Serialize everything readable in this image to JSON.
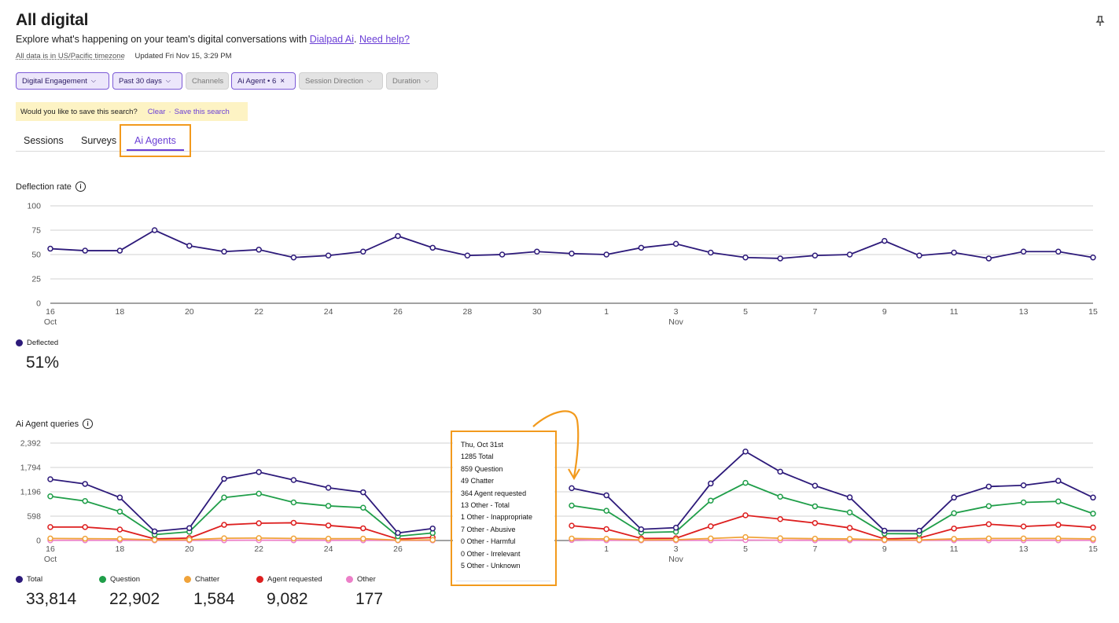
{
  "header": {
    "title": "All digital",
    "subtitle_prefix": "Explore what's happening on your team's digital conversations with ",
    "subtitle_link1": "Dialpad Ai",
    "subtitle_sep": ". ",
    "subtitle_link2": "Need help?",
    "timezone_note": "All data is in US/Pacific timezone",
    "updated": "Updated Fri Nov 15, 3:29 PM",
    "pin_icon": "pin-icon"
  },
  "filters": [
    {
      "label": "Digital Engagement",
      "chevron": true,
      "active": true
    },
    {
      "label": "Past 30 days",
      "chevron": true,
      "active": true
    },
    {
      "label": "Channels",
      "chevron": false,
      "active": false
    },
    {
      "label": "Ai Agent • 6",
      "chevron": false,
      "close": true,
      "active": true
    },
    {
      "label": "Session Direction",
      "chevron": true,
      "active": false
    },
    {
      "label": "Duration",
      "chevron": true,
      "active": false
    }
  ],
  "save_banner": {
    "question": "Would you like to save this search?",
    "clear": "Clear",
    "separator": "·",
    "save": "Save this search"
  },
  "tabs": [
    {
      "label": "Sessions",
      "selected": false
    },
    {
      "label": "Surveys",
      "selected": false
    },
    {
      "label": "Ai Agents",
      "selected": true
    }
  ],
  "deflection": {
    "title": "Deflection rate",
    "legend": "Deflected",
    "total": "51%"
  },
  "queries": {
    "title": "Ai Agent queries",
    "legend": [
      {
        "name": "Total",
        "color": "#2d1a7a",
        "total": "33,814"
      },
      {
        "name": "Question",
        "color": "#1f9e49",
        "total": "22,902"
      },
      {
        "name": "Chatter",
        "color": "#f0a33a",
        "total": "1,584"
      },
      {
        "name": "Agent requested",
        "color": "#dd1f1f",
        "total": "9,082"
      },
      {
        "name": "Other",
        "color": "#ec7fc8",
        "total": "177"
      }
    ]
  },
  "tooltip": {
    "lines": [
      "Thu, Oct 31st",
      "1285 Total",
      "859 Question",
      "49 Chatter",
      "364 Agent requested",
      "13 Other - Total",
      "1 Other - Inappropriate",
      "7 Other - Abusive",
      "0 Other - Harmful",
      "0 Other - Irrelevant",
      "5 Other - Unknown"
    ]
  },
  "chart_data": [
    {
      "type": "line",
      "title": "Deflection rate",
      "x": [
        "Oct 16",
        "Oct 17",
        "Oct 18",
        "Oct 19",
        "Oct 20",
        "Oct 21",
        "Oct 22",
        "Oct 23",
        "Oct 24",
        "Oct 25",
        "Oct 26",
        "Oct 27",
        "Oct 28",
        "Oct 29",
        "Oct 30",
        "Oct 31",
        "Nov 1",
        "Nov 2",
        "Nov 3",
        "Nov 4",
        "Nov 5",
        "Nov 6",
        "Nov 7",
        "Nov 8",
        "Nov 9",
        "Nov 10",
        "Nov 11",
        "Nov 12",
        "Nov 13",
        "Nov 14",
        "Nov 15"
      ],
      "x_tick_labels": [
        "16",
        "18",
        "20",
        "22",
        "24",
        "26",
        "28",
        "30",
        "1",
        "3",
        "5",
        "7",
        "9",
        "11",
        "13",
        "15"
      ],
      "x_month_labels": {
        "Oct": 0,
        "Nov": 18
      },
      "y_ticks": [
        "0",
        "25",
        "50",
        "75",
        "100"
      ],
      "ylim": [
        0,
        100
      ],
      "series": [
        {
          "name": "Deflected",
          "color": "#2d1a7a",
          "values": [
            56,
            54,
            54,
            75,
            59,
            53,
            55,
            47,
            49,
            53,
            69,
            57,
            49,
            50,
            53,
            51,
            50,
            57,
            61,
            52,
            47,
            46,
            49,
            50,
            64,
            49,
            52,
            46,
            53,
            53,
            47
          ]
        }
      ],
      "grid": true
    },
    {
      "type": "line",
      "title": "Ai Agent queries",
      "x": [
        "Oct 16",
        "Oct 17",
        "Oct 18",
        "Oct 19",
        "Oct 20",
        "Oct 21",
        "Oct 22",
        "Oct 23",
        "Oct 24",
        "Oct 25",
        "Oct 26",
        "Oct 27",
        "Oct 28",
        "Oct 29",
        "Oct 30",
        "Oct 31",
        "Nov 1",
        "Nov 2",
        "Nov 3",
        "Nov 4",
        "Nov 5",
        "Nov 6",
        "Nov 7",
        "Nov 8",
        "Nov 9",
        "Nov 10",
        "Nov 11",
        "Nov 12",
        "Nov 13",
        "Nov 14",
        "Nov 15"
      ],
      "x_tick_labels": [
        "16",
        "18",
        "20",
        "22",
        "24",
        "26",
        "28",
        "30",
        "1",
        "3",
        "5",
        "7",
        "9",
        "11",
        "13",
        "15"
      ],
      "x_month_labels": {
        "Oct": 0,
        "Nov": 18
      },
      "y_ticks": [
        "0",
        "598",
        "1,196",
        "1,794",
        "2,392"
      ],
      "ylim": [
        0,
        2392
      ],
      "series": [
        {
          "name": "Total",
          "color": "#2d1a7a",
          "values": [
            1505,
            1390,
            1055,
            225,
            305,
            1515,
            1680,
            1485,
            1295,
            1185,
            185,
            295,
            null,
            null,
            null,
            1285,
            1110,
            275,
            315,
            1400,
            2185,
            1690,
            1345,
            1060,
            240,
            240,
            1055,
            1325,
            1355,
            1465,
            1055
          ]
        },
        {
          "name": "Question",
          "color": "#1f9e49",
          "values": [
            1085,
            970,
            710,
            145,
            215,
            1055,
            1150,
            935,
            850,
            805,
            105,
            185,
            null,
            null,
            null,
            859,
            730,
            195,
            215,
            980,
            1415,
            1075,
            840,
            690,
            170,
            165,
            670,
            845,
            935,
            960,
            660
          ]
        },
        {
          "name": "Chatter",
          "color": "#f0a33a",
          "values": [
            50,
            45,
            40,
            15,
            20,
            55,
            60,
            50,
            45,
            45,
            10,
            15,
            null,
            null,
            null,
            49,
            40,
            15,
            20,
            50,
            85,
            55,
            45,
            40,
            15,
            15,
            40,
            50,
            50,
            50,
            40
          ]
        },
        {
          "name": "Agent requested",
          "color": "#dd1f1f",
          "values": [
            330,
            330,
            270,
            40,
            60,
            385,
            425,
            435,
            370,
            300,
            35,
            75,
            null,
            null,
            null,
            364,
            280,
            50,
            55,
            350,
            620,
            525,
            430,
            310,
            40,
            60,
            295,
            400,
            345,
            385,
            320
          ]
        },
        {
          "name": "Other",
          "color": "#ec7fc8",
          "values": [
            5,
            5,
            5,
            2,
            3,
            6,
            7,
            6,
            5,
            5,
            2,
            3,
            null,
            null,
            null,
            13,
            5,
            2,
            3,
            6,
            9,
            7,
            6,
            5,
            2,
            2,
            5,
            6,
            6,
            6,
            5
          ]
        }
      ],
      "grid": true
    }
  ]
}
